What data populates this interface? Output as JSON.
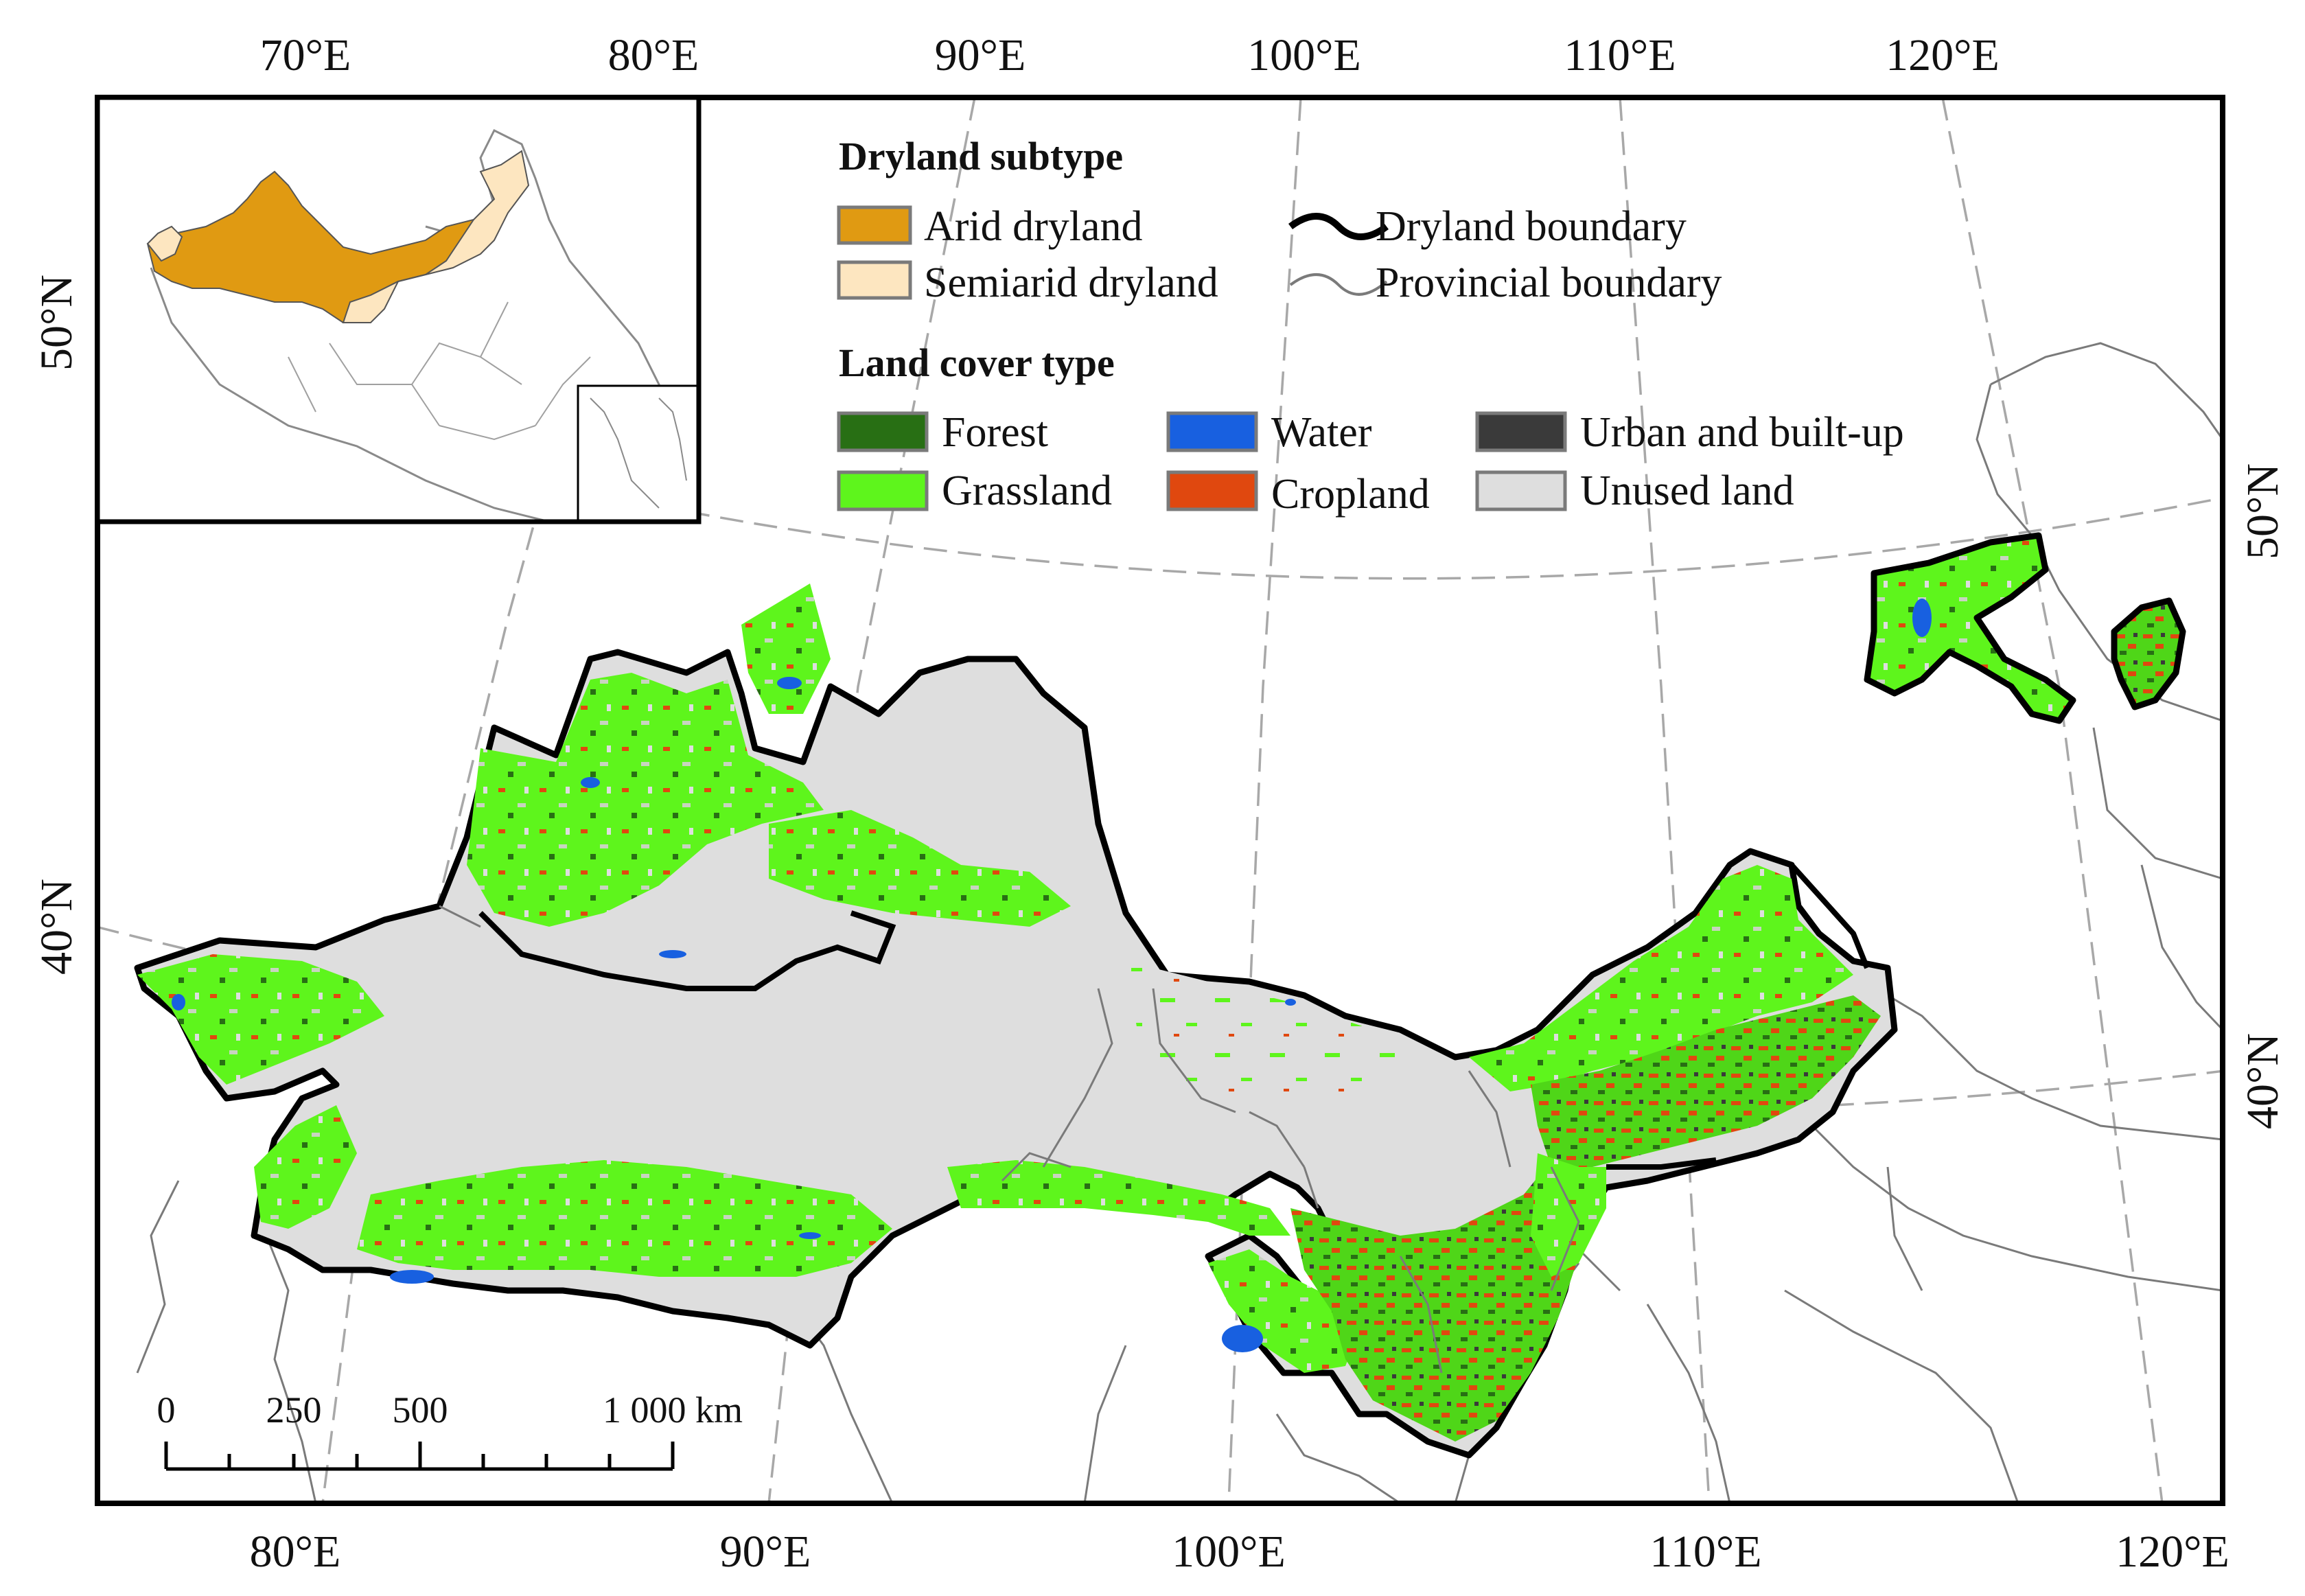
{
  "top_ticks": [
    "70°E",
    "80°E",
    "90°E",
    "100°E",
    "110°E",
    "120°E"
  ],
  "bottom_ticks": [
    "80°E",
    "90°E",
    "100°E",
    "110°E",
    "120°E"
  ],
  "left_ticks": [
    "50°N",
    "40°N"
  ],
  "right_ticks": [
    "50°N",
    "40°N"
  ],
  "legend": {
    "dryland_title": "Dryland subtype",
    "arid": "Arid dryland",
    "semiarid": "Semiarid dryland",
    "dryland_boundary": "Dryland boundary",
    "provincial_boundary": "Provincial boundary",
    "landcover_title": "Land cover type",
    "forest": "Forest",
    "water": "Water",
    "urban": "Urban and built-up",
    "grassland": "Grassland",
    "cropland": "Cropland",
    "unused": "Unused land"
  },
  "scale_bar": {
    "labels": [
      "0",
      "250",
      "500",
      "1 000 km"
    ]
  },
  "colors": {
    "arid": "#e09a12",
    "semiarid": "#fde6c0",
    "forest": "#286f14",
    "water": "#1860e0",
    "urban": "#3a3a3a",
    "grassland": "#5ef51c",
    "cropland": "#e0480f",
    "unused": "#dedede"
  }
}
